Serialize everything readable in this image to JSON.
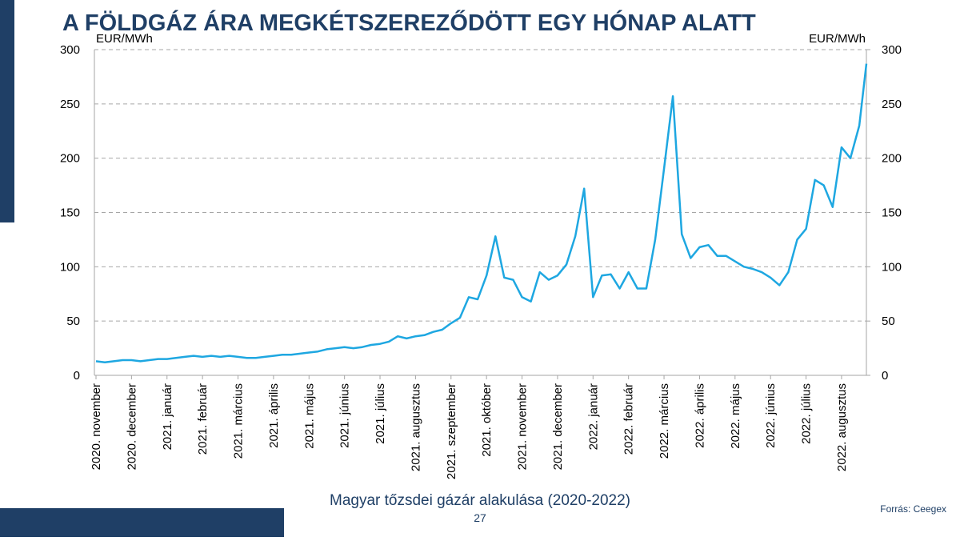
{
  "chart_data": {
    "type": "line",
    "title": "A FÖLDGÁZ ÁRA MEGKÉTSZEREZŐDÖTT EGY HÓNAP ALATT",
    "subtitle": "Magyar tőzsdei gázár alakulása (2020-2022)",
    "y_label": "EUR/MWh",
    "y2_label": "EUR/MWh",
    "x": [
      0,
      0.25,
      0.5,
      0.75,
      1,
      1.25,
      1.5,
      1.75,
      2,
      2.25,
      2.5,
      2.75,
      3,
      3.25,
      3.5,
      3.75,
      4,
      4.25,
      4.5,
      4.75,
      5,
      5.25,
      5.5,
      5.75,
      6,
      6.25,
      6.5,
      6.75,
      7,
      7.25,
      7.5,
      7.75,
      8,
      8.25,
      8.5,
      8.75,
      9,
      9.25,
      9.5,
      9.75,
      10,
      10.25,
      10.5,
      10.75,
      11,
      11.25,
      11.5,
      11.75,
      12,
      12.25,
      12.5,
      12.75,
      13,
      13.25,
      13.5,
      13.75,
      14,
      14.25,
      14.5,
      14.75,
      15,
      15.25,
      15.5,
      15.75,
      16,
      16.25,
      16.5,
      16.75,
      17,
      17.25,
      17.5,
      17.75,
      18,
      18.25,
      18.5,
      18.75,
      19,
      19.25,
      19.5,
      19.75,
      20,
      20.25,
      20.5,
      20.75,
      21,
      21.25,
      21.5,
      21.7
    ],
    "series": [
      {
        "name": "Magyar tőzsdei gázár",
        "color": "#1ea7e1",
        "values": [
          13,
          12,
          13,
          14,
          14,
          13,
          14,
          15,
          15,
          16,
          17,
          18,
          17,
          18,
          17,
          18,
          17,
          16,
          16,
          17,
          18,
          19,
          19,
          20,
          21,
          22,
          24,
          25,
          26,
          25,
          26,
          28,
          29,
          31,
          36,
          34,
          36,
          37,
          40,
          42,
          48,
          53,
          72,
          70,
          92,
          128,
          90,
          88,
          72,
          68,
          95,
          88,
          92,
          102,
          128,
          172,
          72,
          92,
          93,
          80,
          95,
          80,
          80,
          125,
          190,
          257,
          130,
          108,
          118,
          120,
          110,
          110,
          105,
          100,
          98,
          95,
          90,
          83,
          95,
          125,
          135,
          180,
          175,
          155,
          210,
          200,
          230,
          287
        ]
      }
    ],
    "xlim": [
      0,
      21.7
    ],
    "xticks": [
      {
        "value": 0,
        "label": "2020. november"
      },
      {
        "value": 1,
        "label": "2020. december"
      },
      {
        "value": 2,
        "label": "2021. január"
      },
      {
        "value": 3,
        "label": "2021. február"
      },
      {
        "value": 4,
        "label": "2021. március"
      },
      {
        "value": 5,
        "label": "2021. április"
      },
      {
        "value": 6,
        "label": "2021. május"
      },
      {
        "value": 7,
        "label": "2021. június"
      },
      {
        "value": 8,
        "label": "2021. július"
      },
      {
        "value": 9,
        "label": "2021. augusztus"
      },
      {
        "value": 10,
        "label": "2021. szeptember"
      },
      {
        "value": 11,
        "label": "2021. október"
      },
      {
        "value": 12,
        "label": "2021. november"
      },
      {
        "value": 13,
        "label": "2021. december"
      },
      {
        "value": 14,
        "label": "2022. január"
      },
      {
        "value": 15,
        "label": "2022. február"
      },
      {
        "value": 16,
        "label": "2022. március"
      },
      {
        "value": 17,
        "label": "2022. április"
      },
      {
        "value": 18,
        "label": "2022. május"
      },
      {
        "value": 19,
        "label": "2022. június"
      },
      {
        "value": 20,
        "label": "2022. július"
      },
      {
        "value": 21,
        "label": "2022. augusztus"
      }
    ],
    "ylim": [
      0,
      300
    ],
    "yticks": [
      0,
      50,
      100,
      150,
      200,
      250,
      300
    ],
    "y2lim": [
      0,
      300
    ],
    "y2ticks": [
      0,
      50,
      100,
      150,
      200,
      250,
      300
    ],
    "grid": true
  },
  "page_number": "27",
  "source": "Forrás: Ceegex"
}
